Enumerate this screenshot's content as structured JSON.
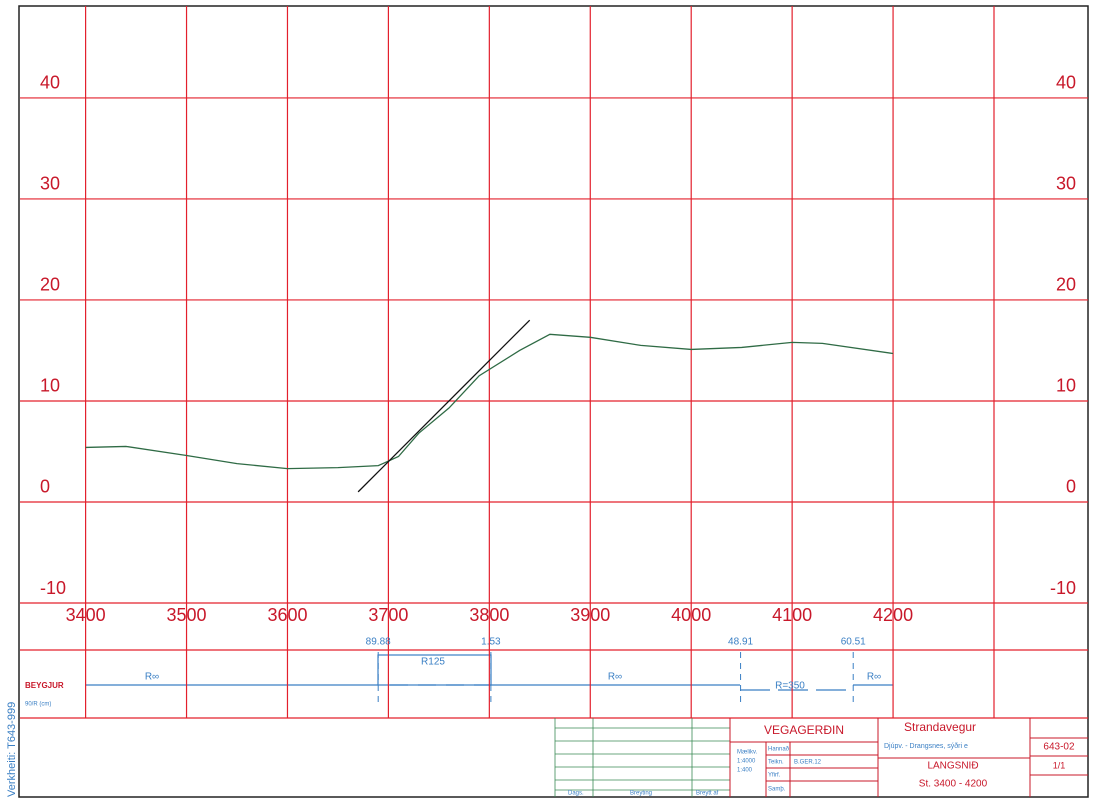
{
  "chart_data": {
    "type": "line",
    "xlim": [
      3335,
      4300
    ],
    "ylim": [
      -10,
      49
    ],
    "xticks": [
      3400,
      3500,
      3600,
      3700,
      3800,
      3900,
      4000,
      4100,
      4200
    ],
    "yticks": [
      -10,
      0,
      10,
      20,
      30,
      40
    ],
    "grid": true,
    "grid_color": "#e3202c",
    "series": [
      {
        "color": "#2f6b45",
        "x": [
          3400,
          3440,
          3500,
          3550,
          3600,
          3650,
          3690,
          3710,
          3730,
          3760,
          3790,
          3830,
          3860,
          3900,
          3950,
          4000,
          4050,
          4100,
          4130,
          4200
        ],
        "values": [
          5.4,
          5.5,
          4.6,
          3.8,
          3.3,
          3.4,
          3.6,
          4.5,
          6.8,
          9.3,
          12.5,
          15,
          16.6,
          16.3,
          15.5,
          15.1,
          15.3,
          15.8,
          15.7,
          14.7
        ]
      },
      {
        "color": "#111111",
        "x": [
          3670,
          3840
        ],
        "values": [
          1,
          18
        ]
      }
    ]
  },
  "curves": {
    "heading": "BEYGJUR",
    "subheading": "90/R (cm)",
    "stations": [
      {
        "value": 3689.88,
        "label": "89.88"
      },
      {
        "value": 3801.53,
        "label": "1.53"
      },
      {
        "value": 4048.91,
        "label": "48.91"
      },
      {
        "value": 4160.51,
        "label": "60.51"
      }
    ],
    "radii": [
      "R∞",
      "R125",
      "R∞",
      "R=350",
      "R∞"
    ]
  },
  "title_block": {
    "agency": "VEGAGERÐIN",
    "road": "Strandavegur",
    "section": "Djúpv. - Drangsnes, sýðri e",
    "drawing": "LANGSNIÐ",
    "stations": "St. 3400 - 4200",
    "number": "643-02",
    "sheet": "1/1",
    "scale_label": "Mælikv.",
    "scale_h": "1:4000",
    "scale_v": "1:400",
    "designed": "Hannað",
    "drawn": "Teikn.",
    "drawn_by": "B.GER.12",
    "checked": "Yfirf.",
    "approved": "Samþ.",
    "date": "Dags.",
    "change": "Breyting",
    "changed_by": "Breytt af"
  },
  "side_label": "Verkheiti: T643-999"
}
